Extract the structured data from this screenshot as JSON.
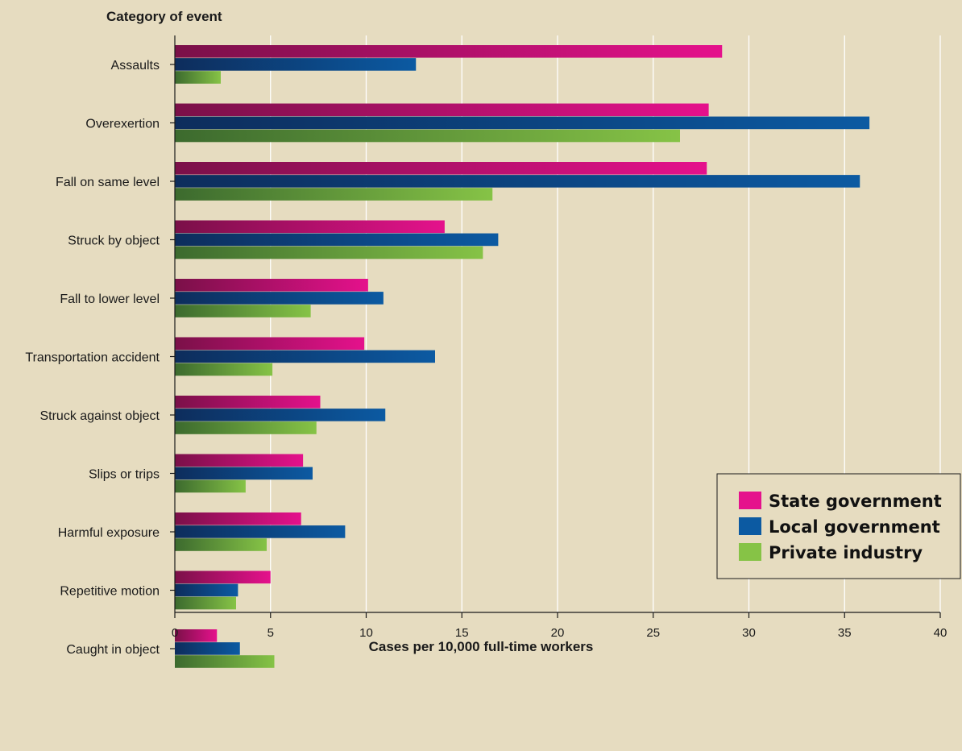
{
  "chart_data": {
    "type": "bar",
    "orientation": "horizontal",
    "ylabel": "Category of event",
    "xlabel": "Cases per 10,000 full-time workers",
    "xlim": [
      0,
      40
    ],
    "xticks": [
      0,
      5,
      10,
      15,
      20,
      25,
      30,
      35,
      40
    ],
    "grid": "vertical",
    "legend_position": "right",
    "categories": [
      "Assaults",
      "Overexertion",
      "Fall on same level",
      "Struck by object",
      "Fall to lower level",
      "Transportation accident",
      "Struck against object",
      "Slips or trips",
      "Harmful exposure",
      "Repetitive motion",
      "Caught in object"
    ],
    "series": [
      {
        "name": "State government",
        "color": "#e5118c",
        "dark": "#7a1048",
        "values": [
          28.6,
          27.9,
          27.8,
          14.1,
          10.1,
          9.9,
          7.6,
          6.7,
          6.6,
          5.0,
          2.2
        ]
      },
      {
        "name": "Local government",
        "color": "#0c5aa2",
        "dark": "#0d2d5c",
        "values": [
          12.6,
          36.3,
          35.8,
          16.9,
          10.9,
          13.6,
          11.0,
          7.2,
          8.9,
          3.3,
          3.4
        ]
      },
      {
        "name": "Private industry",
        "color": "#86c346",
        "dark": "#3c6a2e",
        "values": [
          2.4,
          26.4,
          16.6,
          16.1,
          7.1,
          5.1,
          7.4,
          3.7,
          4.8,
          3.2,
          5.2
        ]
      }
    ]
  }
}
